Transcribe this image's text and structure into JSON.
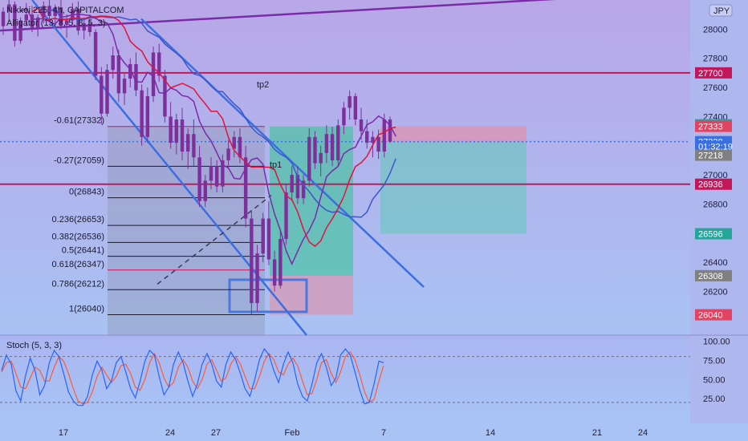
{
  "header": {
    "title": "Nikkei 225, 4h, CAPITALCOM",
    "indicator": "Alligator (13, 8, 5, 8, 5, 3)",
    "currency": "JPY"
  },
  "colors": {
    "background_top": "#b7a6e6",
    "background_bottom": "#a8c0f2",
    "candle": "#7d2f9c",
    "channel": "#3b6fe0",
    "level_line": "#c2185b",
    "trend_line": "#7b2ba8",
    "last_price": "#3b6fe0",
    "jaw": "#3d56c8",
    "teeth": "#e0143c",
    "lips": "#7b2ba8",
    "stoch_k": "#2962ff",
    "stoch_d": "#ff5a36"
  },
  "chart_data": {
    "type": "candlestick",
    "price_axis": {
      "ylim": [
        25900,
        28200
      ],
      "ticks": [
        26200,
        26400,
        26600,
        26800,
        27000,
        27200,
        27400,
        27600,
        27800,
        28000
      ]
    },
    "time_axis": {
      "xlim": [
        13,
        27
      ],
      "ticks": [
        {
          "label": "17",
          "day": 17
        },
        {
          "label": "24",
          "day": 24
        },
        {
          "label": "27",
          "day": 27
        },
        {
          "label": "Feb",
          "day": 32
        },
        {
          "label": "7",
          "day": 38
        },
        {
          "label": "14",
          "day": 45
        },
        {
          "label": "21",
          "day": 52
        },
        {
          "label": "24",
          "day": 55
        }
      ]
    },
    "price_badges": [
      {
        "label": "27700",
        "value": 27700,
        "color": "#c2185b"
      },
      {
        "label": "27344",
        "value": 27344,
        "color": "#26a69a"
      },
      {
        "label": "27333",
        "value": 27333,
        "color": "#e04460"
      },
      {
        "label": "27228",
        "value": 27228,
        "color": "#3b6fe0"
      },
      {
        "label": "01:32:19",
        "value": 27195,
        "color": "#3b6fe0"
      },
      {
        "label": "27218",
        "value": 27135,
        "color": "#808080"
      },
      {
        "label": "26936",
        "value": 26936,
        "color": "#c2185b"
      },
      {
        "label": "26596",
        "value": 26596,
        "color": "#26a69a"
      },
      {
        "label": "26308",
        "value": 26308,
        "color": "#808080"
      },
      {
        "label": "26040",
        "value": 26040,
        "color": "#e04460"
      }
    ],
    "horizontal_levels": [
      27700,
      26936
    ],
    "last_price": 27228,
    "fibonacci": [
      {
        "label": "-0.61(27332)",
        "value": 27332,
        "color": "#c2185b"
      },
      {
        "label": "-0.27(27059)",
        "value": 27059,
        "color": "#1a1a2e"
      },
      {
        "label": "0(26843)",
        "value": 26843,
        "color": "#1a1a2e"
      },
      {
        "label": "0.236(26653)",
        "value": 26653,
        "color": "#1a1a2e"
      },
      {
        "label": "0.382(26536)",
        "value": 26536,
        "color": "#1a1a2e"
      },
      {
        "label": "0.5(26441)",
        "value": 26441,
        "color": "#1a1a2e"
      },
      {
        "label": "0.618(26347)",
        "value": 26347,
        "color": "#c2185b"
      },
      {
        "label": "0.786(26212)",
        "value": 26212,
        "color": "#1a1a2e"
      },
      {
        "label": "1(26040)",
        "value": 26040,
        "color": "#1a1a2e"
      }
    ],
    "annotations": [
      {
        "label": "tp2",
        "day": 25.5,
        "value": 27600
      },
      {
        "label": "tp1",
        "day": 26.2,
        "value": 27050
      }
    ],
    "stochastic": {
      "title": "Stoch (5, 3, 3)",
      "ylim": [
        0,
        100
      ],
      "ticks": [
        {
          "label": "100.00",
          "value": 100
        },
        {
          "label": "75.00",
          "value": 75
        },
        {
          "label": "50.00",
          "value": 50
        },
        {
          "label": "25.00",
          "value": 25
        }
      ],
      "bands": [
        80,
        20
      ],
      "k": [
        62,
        82,
        70,
        35,
        22,
        55,
        78,
        62,
        30,
        42,
        72,
        88,
        80,
        58,
        34,
        22,
        16,
        16,
        28,
        56,
        74,
        62,
        38,
        48,
        72,
        80,
        60,
        38,
        26,
        48,
        74,
        88,
        82,
        54,
        30,
        40,
        70,
        86,
        72,
        48,
        28,
        44,
        70,
        84,
        70,
        48,
        40,
        70,
        86,
        76,
        58,
        38,
        28,
        50,
        76,
        90,
        82,
        62,
        46,
        70,
        86,
        72,
        44,
        28,
        22,
        44,
        72,
        84,
        66,
        42,
        52,
        82,
        90,
        82,
        60,
        36,
        18,
        20,
        44,
        74,
        72
      ],
      "d": [
        60,
        72,
        74,
        58,
        40,
        38,
        52,
        66,
        62,
        48,
        48,
        66,
        80,
        74,
        58,
        38,
        22,
        18,
        20,
        34,
        54,
        66,
        56,
        46,
        54,
        68,
        70,
        58,
        40,
        36,
        50,
        72,
        84,
        72,
        52,
        40,
        46,
        66,
        76,
        66,
        48,
        38,
        50,
        70,
        76,
        62,
        48,
        52,
        70,
        80,
        70,
        54,
        38,
        38,
        54,
        74,
        84,
        76,
        60,
        56,
        70,
        78,
        68,
        48,
        30,
        32,
        50,
        72,
        76,
        58,
        46,
        60,
        80,
        86,
        76,
        56,
        34,
        20,
        24,
        48,
        68
      ]
    },
    "candles": [
      [
        28020,
        28150,
        27960,
        28120
      ],
      [
        28120,
        28200,
        28050,
        28170
      ],
      [
        28170,
        28190,
        27880,
        27920
      ],
      [
        27920,
        28080,
        27900,
        28060
      ],
      [
        28060,
        28180,
        28020,
        28100
      ],
      [
        28100,
        28160,
        27980,
        28010
      ],
      [
        28010,
        28100,
        27950,
        28080
      ],
      [
        28080,
        28190,
        28040,
        28160
      ],
      [
        28160,
        28200,
        28060,
        28090
      ],
      [
        28090,
        28170,
        28020,
        28150
      ],
      [
        28150,
        28200,
        28000,
        28030
      ],
      [
        28030,
        28100,
        27940,
        28060
      ],
      [
        28060,
        28180,
        28030,
        28140
      ],
      [
        28140,
        28190,
        27960,
        27990
      ],
      [
        27990,
        28080,
        27930,
        28040
      ],
      [
        28040,
        28100,
        27950,
        27980
      ],
      [
        27980,
        28000,
        27650,
        27680
      ],
      [
        27680,
        27740,
        27350,
        27420
      ],
      [
        27420,
        27760,
        27400,
        27720
      ],
      [
        27720,
        27880,
        27660,
        27820
      ],
      [
        27820,
        27860,
        27500,
        27560
      ],
      [
        27560,
        27700,
        27480,
        27660
      ],
      [
        27660,
        27800,
        27600,
        27760
      ],
      [
        27760,
        27840,
        27540,
        27580
      ],
      [
        27580,
        27620,
        27200,
        27260
      ],
      [
        27260,
        27600,
        27220,
        27540
      ],
      [
        27540,
        27880,
        27500,
        27840
      ],
      [
        27840,
        27900,
        27640,
        27680
      ],
      [
        27680,
        27720,
        27360,
        27400
      ],
      [
        27400,
        27500,
        27180,
        27220
      ],
      [
        27220,
        27420,
        27140,
        27380
      ],
      [
        27380,
        27460,
        27100,
        27160
      ],
      [
        27160,
        27320,
        27040,
        27280
      ],
      [
        27280,
        27380,
        27060,
        27120
      ],
      [
        27120,
        27200,
        26780,
        26820
      ],
      [
        26820,
        27000,
        26780,
        26960
      ],
      [
        26960,
        27120,
        26900,
        27060
      ],
      [
        27060,
        27100,
        26880,
        26920
      ],
      [
        26920,
        27140,
        26880,
        27100
      ],
      [
        27100,
        27240,
        27040,
        27180
      ],
      [
        27180,
        27300,
        27120,
        27260
      ],
      [
        27260,
        27320,
        27080,
        27120
      ],
      [
        27120,
        27200,
        26640,
        26700
      ],
      [
        26700,
        26760,
        26040,
        26120
      ],
      [
        26120,
        26520,
        26060,
        26460
      ],
      [
        26460,
        26740,
        26400,
        26700
      ],
      [
        26700,
        26820,
        26380,
        26420
      ],
      [
        26420,
        26480,
        26200,
        26240
      ],
      [
        26240,
        26620,
        26220,
        26560
      ],
      [
        26560,
        26940,
        26520,
        26880
      ],
      [
        26880,
        27060,
        26820,
        27000
      ],
      [
        27000,
        27060,
        26800,
        26840
      ],
      [
        26840,
        27000,
        26800,
        26960
      ],
      [
        26960,
        27320,
        26920,
        27260
      ],
      [
        27260,
        27300,
        27040,
        27080
      ],
      [
        27080,
        27200,
        26990,
        27150
      ],
      [
        27150,
        27340,
        27080,
        27280
      ],
      [
        27280,
        27330,
        27060,
        27100
      ],
      [
        27100,
        27380,
        27060,
        27340
      ],
      [
        27340,
        27500,
        27280,
        27460
      ],
      [
        27460,
        27580,
        27380,
        27540
      ],
      [
        27540,
        27560,
        27340,
        27380
      ],
      [
        27380,
        27460,
        27240,
        27300
      ],
      [
        27300,
        27380,
        27180,
        27220
      ],
      [
        27220,
        27300,
        27120,
        27260
      ],
      [
        27260,
        27310,
        27110,
        27160
      ],
      [
        27160,
        27420,
        27120,
        27380
      ],
      [
        27380,
        27400,
        27220,
        27228
      ]
    ]
  }
}
